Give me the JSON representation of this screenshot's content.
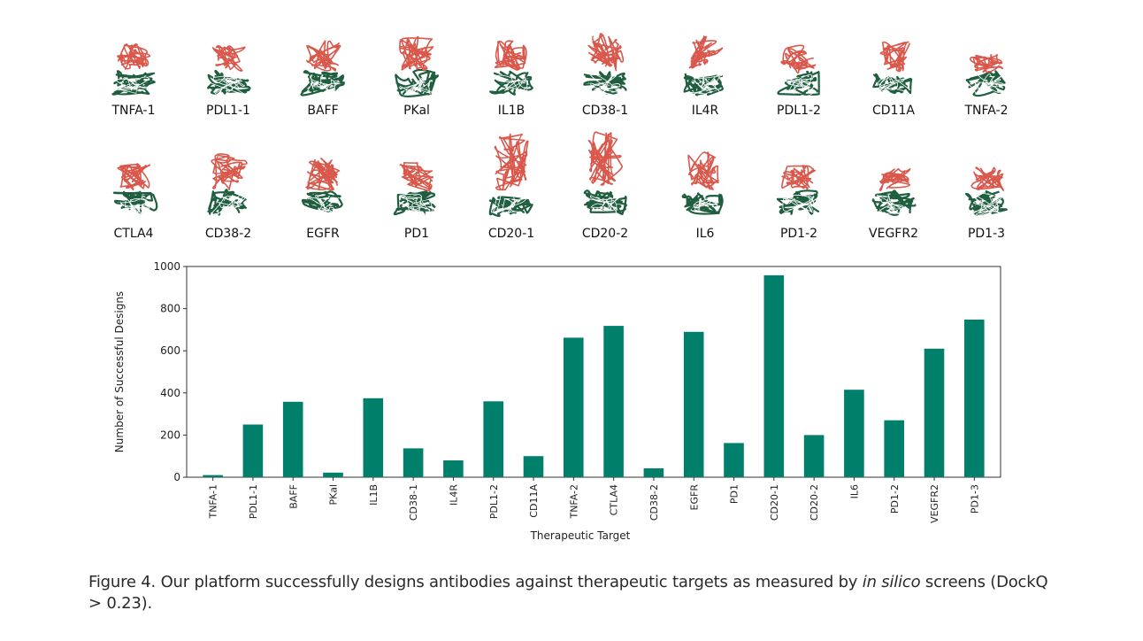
{
  "structures": {
    "row1": [
      "TNFA-1",
      "PDL1-1",
      "BAFF",
      "PKal",
      "IL1B",
      "CD38-1",
      "IL4R",
      "PDL1-2",
      "CD11A",
      "TNFA-2"
    ],
    "row2": [
      "CTLA4",
      "CD38-2",
      "EGFR",
      "PD1",
      "CD20-1",
      "CD20-2",
      "IL6",
      "PD1-2",
      "VEGFR2",
      "PD1-3"
    ],
    "colors": {
      "antigen": "#d9574b",
      "antibody": "#1f5e3f"
    }
  },
  "chart_data": {
    "type": "bar",
    "categories": [
      "TNFA-1",
      "PDL1-1",
      "BAFF",
      "PKal",
      "IL1B",
      "CD38-1",
      "IL4R",
      "PDL1-2",
      "CD11A",
      "TNFA-2",
      "CTLA4",
      "CD38-2",
      "EGFR",
      "PD1",
      "CD20-1",
      "CD20-2",
      "IL6",
      "PD1-2",
      "VEGFR2",
      "PD1-3"
    ],
    "values": [
      10,
      250,
      358,
      22,
      375,
      137,
      80,
      360,
      100,
      662,
      718,
      42,
      690,
      162,
      958,
      200,
      415,
      270,
      610,
      748
    ],
    "xlabel": "Therapeutic Target",
    "ylabel": "Number of Successful Designs",
    "ylim": [
      0,
      1000
    ],
    "yticks": [
      0,
      200,
      400,
      600,
      800,
      1000
    ],
    "bar_color": "#00806a",
    "grid": false
  },
  "caption": {
    "prefix": "Figure 4. Our platform successfully designs antibodies against therapeutic targets as measured by ",
    "italic": "in silico",
    "suffix": " screens (DockQ > 0.23)."
  }
}
